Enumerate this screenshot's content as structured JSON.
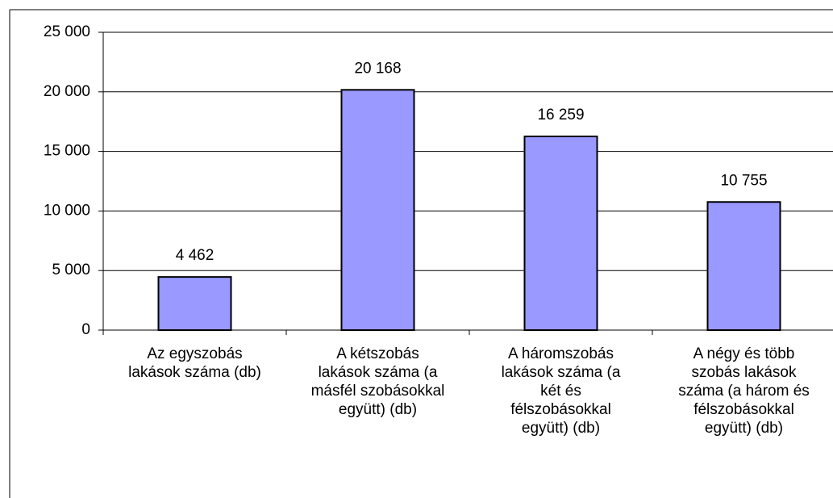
{
  "chart_data": {
    "type": "bar",
    "categories": [
      "Az egyszobás\nlakások száma (db)",
      "A kétszobás\nlakások száma (a\nmásfél szobásokkal\negyütt) (db)",
      "A háromszobás\nlakások száma (a\nkét és\nfélszobásokkal\negyütt) (db)",
      "A négy és több\nszobás lakások\nszáma (a három és\nfélszobásokkal\negyütt) (db)"
    ],
    "values": [
      4462,
      20168,
      16259,
      10755
    ],
    "value_labels": [
      "4 462",
      "20 168",
      "16 259",
      "10 755"
    ],
    "color": "#9999ff",
    "ylim": [
      0,
      25000
    ],
    "yticks": [
      {
        "value": 0,
        "label": "0"
      },
      {
        "value": 5000,
        "label": "5 000"
      },
      {
        "value": 10000,
        "label": "10 000"
      },
      {
        "value": 15000,
        "label": "15 000"
      },
      {
        "value": 20000,
        "label": "20 000"
      },
      {
        "value": 25000,
        "label": "25 000"
      }
    ],
    "grid": true
  }
}
